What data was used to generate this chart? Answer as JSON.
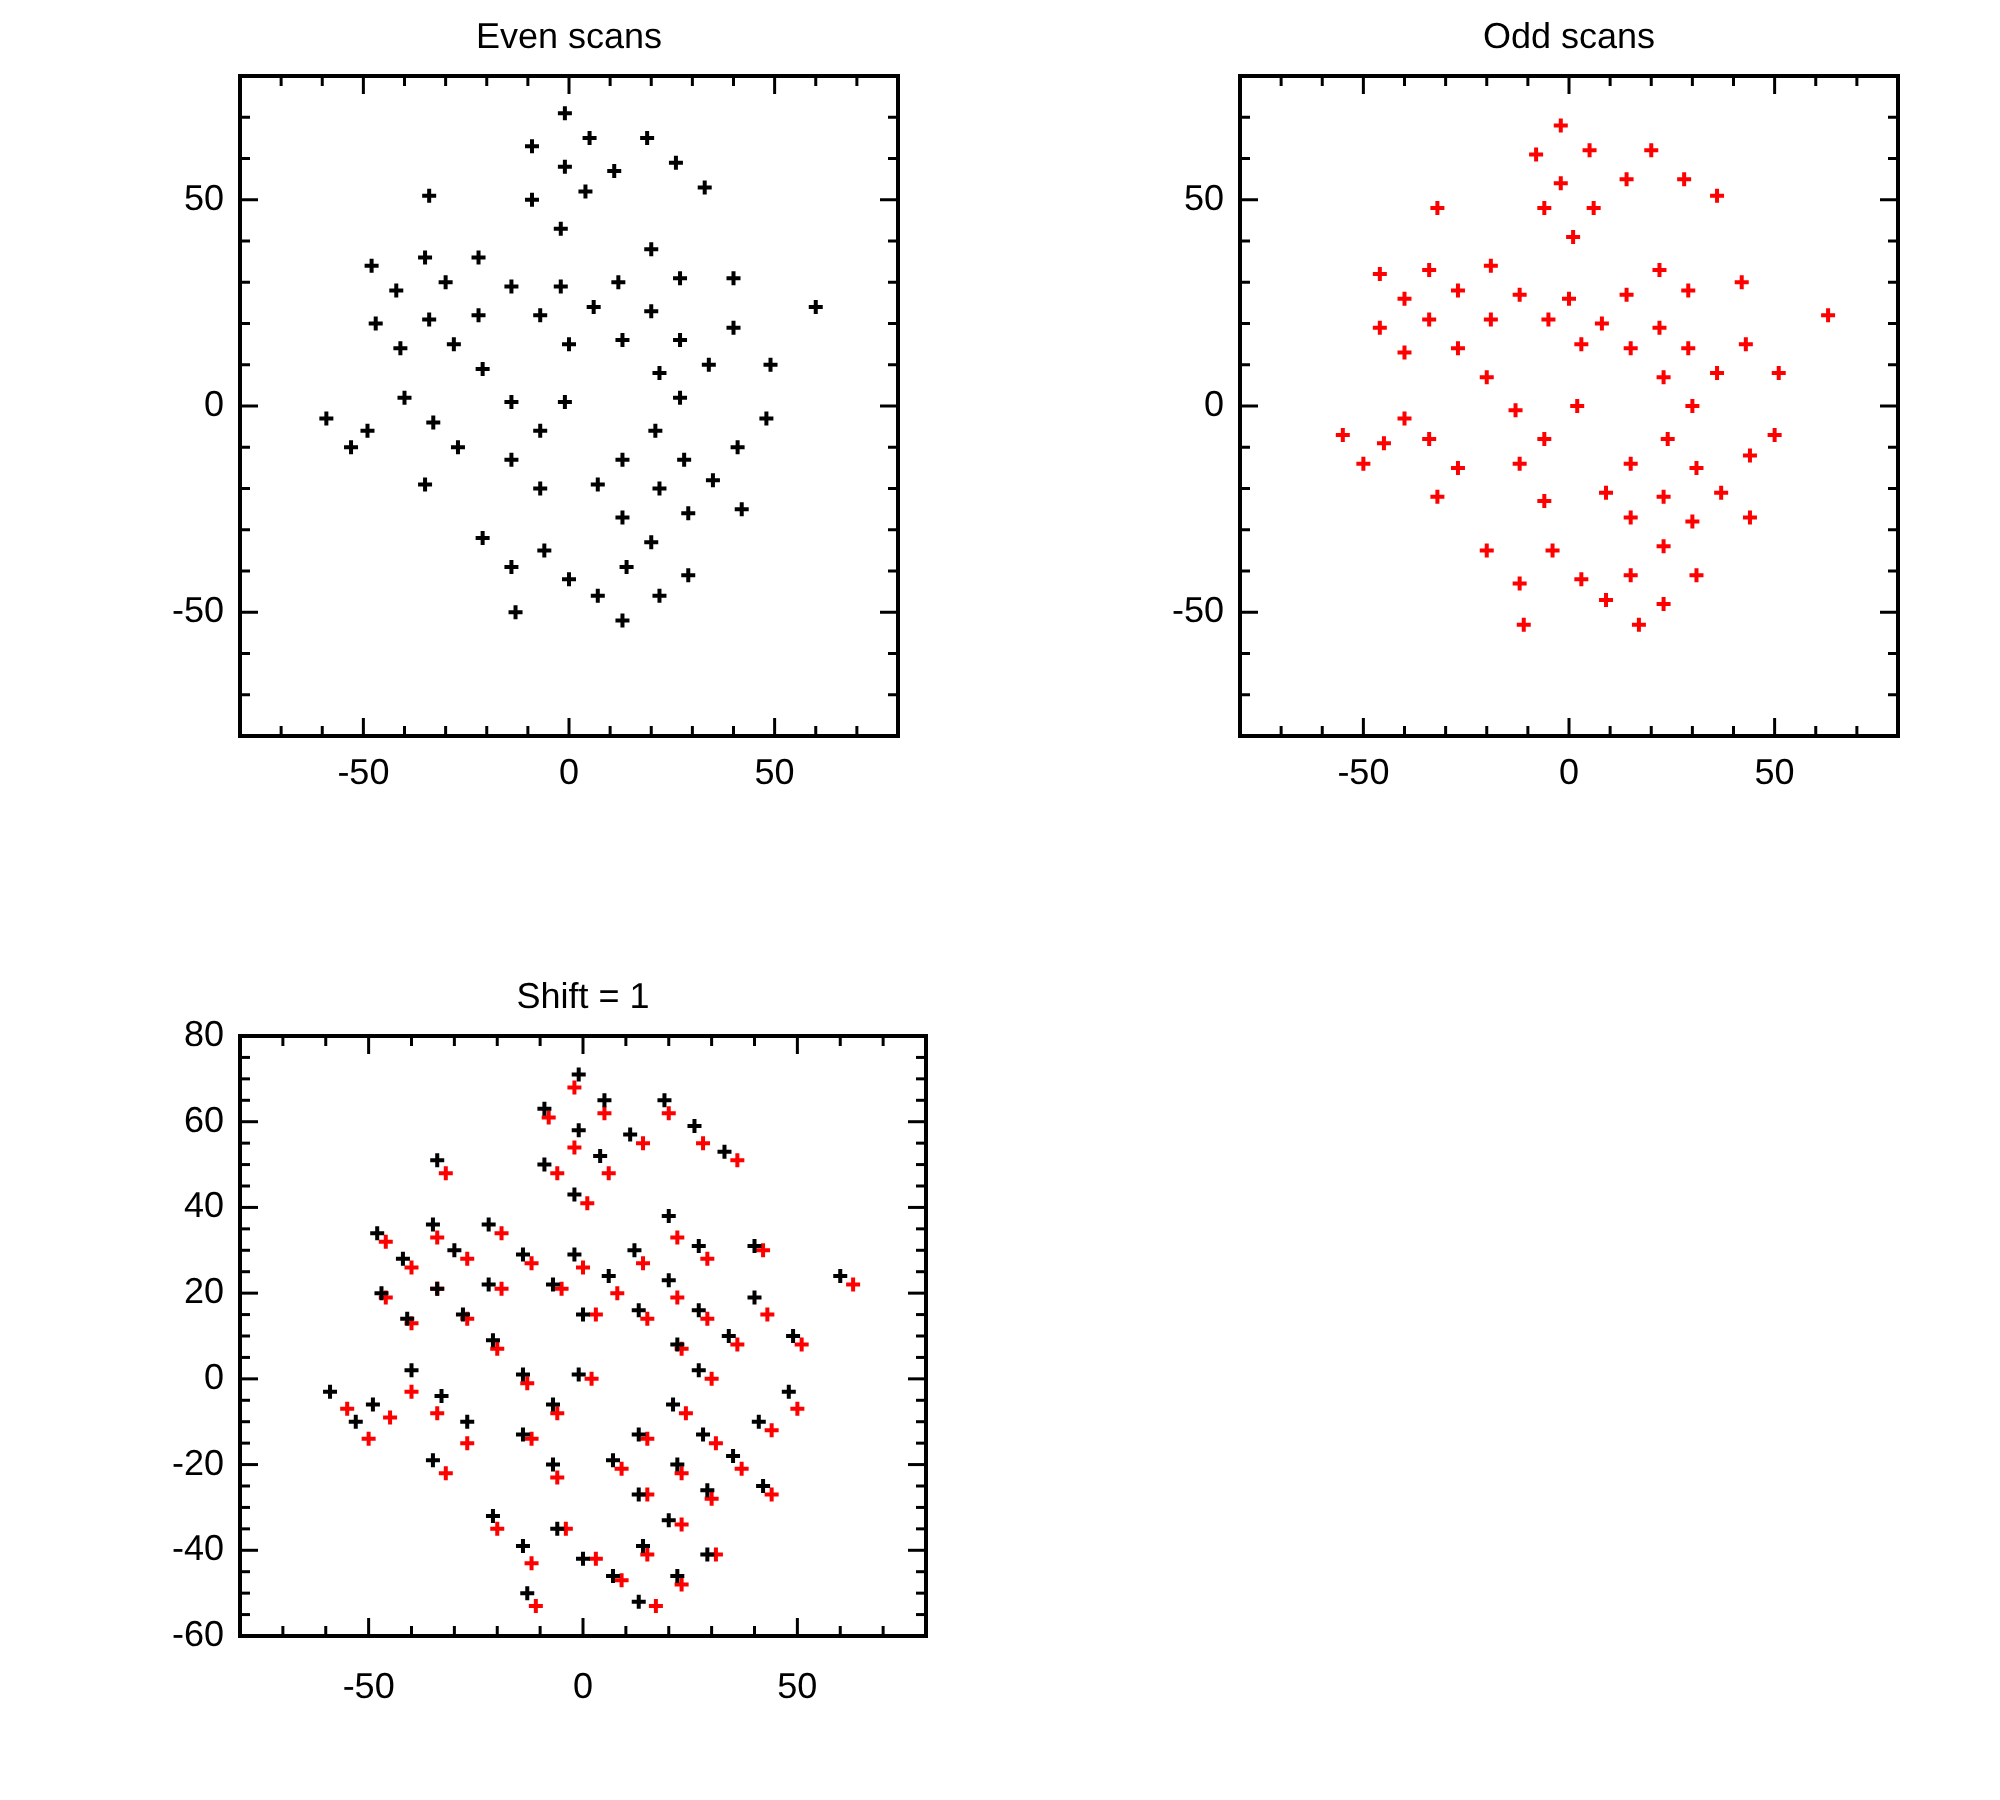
{
  "chart_data": [
    {
      "type": "scatter",
      "title": "Even scans",
      "marker": "cross",
      "xlim": [
        -80,
        80
      ],
      "ylim": [
        -80,
        80
      ],
      "xticks": [
        {
          "value": -70,
          "label": null
        },
        {
          "value": -60,
          "label": null
        },
        -50,
        {
          "value": -40,
          "label": null
        },
        {
          "value": -30,
          "label": null
        },
        {
          "value": -20,
          "label": null
        },
        {
          "value": -10,
          "label": null
        },
        0,
        {
          "value": 10,
          "label": null
        },
        {
          "value": 20,
          "label": null
        },
        {
          "value": 30,
          "label": null
        },
        {
          "value": 40,
          "label": null
        },
        50,
        {
          "value": 60,
          "label": null
        },
        {
          "value": 70,
          "label": null
        }
      ],
      "yticks": [
        {
          "value": -70,
          "label": null
        },
        {
          "value": -60,
          "label": null
        },
        -50,
        {
          "value": -40,
          "label": null
        },
        {
          "value": -30,
          "label": null
        },
        {
          "value": -20,
          "label": null
        },
        {
          "value": -10,
          "label": null
        },
        0,
        {
          "value": 10,
          "label": null
        },
        {
          "value": 20,
          "label": null
        },
        {
          "value": 30,
          "label": null
        },
        {
          "value": 40,
          "label": null
        },
        50,
        {
          "value": 60,
          "label": null
        },
        {
          "value": 70,
          "label": null
        }
      ],
      "series": [
        {
          "color": "#000000",
          "x": [
            -1,
            -9,
            5,
            19,
            -1,
            11,
            26,
            33,
            -34,
            -9,
            4,
            -2,
            20,
            -48,
            -35,
            -22,
            -42,
            -30,
            -14,
            -2,
            12,
            27,
            40,
            60,
            -47,
            -34,
            -22,
            -7,
            6,
            20,
            40,
            -41,
            -28,
            0,
            13,
            27,
            -21,
            22,
            34,
            49,
            -40,
            -14,
            -1,
            27,
            -59,
            -49,
            -33,
            -7,
            21,
            48,
            -53,
            -27,
            -14,
            13,
            28,
            41,
            -35,
            -7,
            7,
            22,
            35,
            13,
            29,
            42,
            -21,
            -6,
            20,
            -14,
            0,
            14,
            29,
            7,
            22,
            -13,
            13
          ],
          "values": [
            71,
            63,
            65,
            65,
            58,
            57,
            59,
            53,
            51,
            50,
            52,
            43,
            38,
            34,
            36,
            36,
            28,
            30,
            29,
            29,
            30,
            31,
            31,
            24,
            20,
            21,
            22,
            22,
            24,
            23,
            19,
            14,
            15,
            15,
            16,
            16,
            9,
            8,
            10,
            10,
            2,
            1,
            1,
            2,
            -3,
            -6,
            -4,
            -6,
            -6,
            -3,
            -10,
            -10,
            -13,
            -13,
            -13,
            -10,
            -19,
            -20,
            -19,
            -20,
            -18,
            -27,
            -26,
            -25,
            -32,
            -35,
            -33,
            -39,
            -42,
            -39,
            -41,
            -46,
            -46,
            -50,
            -52
          ]
        }
      ]
    },
    {
      "type": "scatter",
      "title": "Odd scans",
      "marker": "cross",
      "xlim": [
        -80,
        80
      ],
      "ylim": [
        -80,
        80
      ],
      "xticks": [
        {
          "value": -70,
          "label": null
        },
        {
          "value": -60,
          "label": null
        },
        -50,
        {
          "value": -40,
          "label": null
        },
        {
          "value": -30,
          "label": null
        },
        {
          "value": -20,
          "label": null
        },
        {
          "value": -10,
          "label": null
        },
        0,
        {
          "value": 10,
          "label": null
        },
        {
          "value": 20,
          "label": null
        },
        {
          "value": 30,
          "label": null
        },
        {
          "value": 40,
          "label": null
        },
        50,
        {
          "value": 60,
          "label": null
        },
        {
          "value": 70,
          "label": null
        }
      ],
      "yticks": [
        {
          "value": -70,
          "label": null
        },
        {
          "value": -60,
          "label": null
        },
        -50,
        {
          "value": -40,
          "label": null
        },
        {
          "value": -30,
          "label": null
        },
        {
          "value": -20,
          "label": null
        },
        {
          "value": -10,
          "label": null
        },
        0,
        {
          "value": 10,
          "label": null
        },
        {
          "value": 20,
          "label": null
        },
        {
          "value": 30,
          "label": null
        },
        {
          "value": 40,
          "label": null
        },
        50,
        {
          "value": 60,
          "label": null
        },
        {
          "value": 70,
          "label": null
        }
      ],
      "series": [
        {
          "color": "#ff0000",
          "x": [
            -2,
            -8,
            5,
            20,
            -2,
            14,
            28,
            36,
            -32,
            -6,
            6,
            1,
            22,
            -46,
            -34,
            -19,
            -40,
            -27,
            -12,
            0,
            14,
            29,
            42,
            63,
            -46,
            -34,
            -19,
            -5,
            8,
            22,
            43,
            -40,
            -27,
            3,
            15,
            29,
            -20,
            23,
            36,
            51,
            -40,
            -13,
            2,
            30,
            -55,
            -45,
            -34,
            -6,
            24,
            50,
            -50,
            -27,
            -12,
            15,
            31,
            44,
            -32,
            -6,
            9,
            23,
            37,
            15,
            30,
            44,
            -20,
            -4,
            23,
            -12,
            3,
            15,
            31,
            9,
            23,
            -11,
            17
          ],
          "values": [
            68,
            61,
            62,
            62,
            54,
            55,
            55,
            51,
            48,
            48,
            48,
            41,
            33,
            32,
            33,
            34,
            26,
            28,
            27,
            26,
            27,
            28,
            30,
            22,
            19,
            21,
            21,
            21,
            20,
            19,
            15,
            13,
            14,
            15,
            14,
            14,
            7,
            7,
            8,
            8,
            -3,
            -1,
            0,
            0,
            -7,
            -9,
            -8,
            -8,
            -8,
            -7,
            -14,
            -15,
            -14,
            -14,
            -15,
            -12,
            -22,
            -23,
            -21,
            -22,
            -21,
            -27,
            -28,
            -27,
            -35,
            -35,
            -34,
            -43,
            -42,
            -41,
            -41,
            -47,
            -48,
            -53,
            -53
          ]
        }
      ]
    },
    {
      "type": "scatter",
      "title": "Shift = 1",
      "marker": "cross",
      "xlim": [
        -80,
        80
      ],
      "ylim": [
        -60,
        80
      ],
      "xticks": [
        {
          "value": -70,
          "label": null
        },
        {
          "value": -60,
          "label": null
        },
        -50,
        {
          "value": -40,
          "label": null
        },
        {
          "value": -30,
          "label": null
        },
        {
          "value": -20,
          "label": null
        },
        {
          "value": -10,
          "label": null
        },
        0,
        {
          "value": 10,
          "label": null
        },
        {
          "value": 20,
          "label": null
        },
        {
          "value": 30,
          "label": null
        },
        {
          "value": 40,
          "label": null
        },
        50,
        {
          "value": 60,
          "label": null
        },
        {
          "value": 70,
          "label": null
        }
      ],
      "yticks": [
        -60,
        {
          "value": -55,
          "label": null
        },
        {
          "value": -50,
          "label": null
        },
        {
          "value": -45,
          "label": null
        },
        -40,
        {
          "value": -35,
          "label": null
        },
        {
          "value": -30,
          "label": null
        },
        {
          "value": -25,
          "label": null
        },
        -20,
        {
          "value": -15,
          "label": null
        },
        {
          "value": -10,
          "label": null
        },
        {
          "value": -5,
          "label": null
        },
        0,
        {
          "value": 5,
          "label": null
        },
        {
          "value": 10,
          "label": null
        },
        {
          "value": 15,
          "label": null
        },
        20,
        {
          "value": 25,
          "label": null
        },
        {
          "value": 30,
          "label": null
        },
        {
          "value": 35,
          "label": null
        },
        40,
        {
          "value": 45,
          "label": null
        },
        {
          "value": 50,
          "label": null
        },
        {
          "value": 55,
          "label": null
        },
        60,
        {
          "value": 65,
          "label": null
        },
        {
          "value": 70,
          "label": null
        },
        {
          "value": 75,
          "label": null
        },
        80
      ],
      "series": [
        {
          "color": "#000000",
          "x": [
            -1,
            -9,
            5,
            19,
            -1,
            11,
            26,
            33,
            -34,
            -9,
            4,
            -2,
            20,
            -48,
            -35,
            -22,
            -42,
            -30,
            -14,
            -2,
            12,
            27,
            40,
            60,
            -47,
            -34,
            -22,
            -7,
            6,
            20,
            40,
            -41,
            -28,
            0,
            13,
            27,
            -21,
            22,
            34,
            49,
            -40,
            -14,
            -1,
            27,
            -59,
            -49,
            -33,
            -7,
            21,
            48,
            -53,
            -27,
            -14,
            13,
            28,
            41,
            -35,
            -7,
            7,
            22,
            35,
            13,
            29,
            42,
            -21,
            -6,
            20,
            -14,
            0,
            14,
            29,
            7,
            22,
            -13,
            13
          ],
          "values": [
            71,
            63,
            65,
            65,
            58,
            57,
            59,
            53,
            51,
            50,
            52,
            43,
            38,
            34,
            36,
            36,
            28,
            30,
            29,
            29,
            30,
            31,
            31,
            24,
            20,
            21,
            22,
            22,
            24,
            23,
            19,
            14,
            15,
            15,
            16,
            16,
            9,
            8,
            10,
            10,
            2,
            1,
            1,
            2,
            -3,
            -6,
            -4,
            -6,
            -6,
            -3,
            -10,
            -10,
            -13,
            -13,
            -13,
            -10,
            -19,
            -20,
            -19,
            -20,
            -18,
            -27,
            -26,
            -25,
            -32,
            -35,
            -33,
            -39,
            -42,
            -39,
            -41,
            -46,
            -46,
            -50,
            -52
          ]
        },
        {
          "color": "#ff0000",
          "x": [
            -2,
            -8,
            5,
            20,
            -2,
            14,
            28,
            36,
            -32,
            -6,
            6,
            1,
            22,
            -46,
            -34,
            -19,
            -40,
            -27,
            -12,
            0,
            14,
            29,
            42,
            63,
            -46,
            -34,
            -19,
            -5,
            8,
            22,
            43,
            -40,
            -27,
            3,
            15,
            29,
            -20,
            23,
            36,
            51,
            -40,
            -13,
            2,
            30,
            -55,
            -45,
            -34,
            -6,
            24,
            50,
            -50,
            -27,
            -12,
            15,
            31,
            44,
            -32,
            -6,
            9,
            23,
            37,
            15,
            30,
            44,
            -20,
            -4,
            23,
            -12,
            3,
            15,
            31,
            9,
            23,
            -11,
            17
          ],
          "values": [
            68,
            61,
            62,
            62,
            54,
            55,
            55,
            51,
            48,
            48,
            48,
            41,
            33,
            32,
            33,
            34,
            26,
            28,
            27,
            26,
            27,
            28,
            30,
            22,
            19,
            21,
            21,
            21,
            20,
            19,
            15,
            13,
            14,
            15,
            14,
            14,
            7,
            7,
            8,
            8,
            -3,
            -1,
            0,
            0,
            -7,
            -9,
            -8,
            -8,
            -8,
            -7,
            -14,
            -15,
            -14,
            -14,
            -15,
            -12,
            -22,
            -23,
            -21,
            -22,
            -21,
            -27,
            -28,
            -27,
            -35,
            -35,
            -34,
            -43,
            -42,
            -41,
            -41,
            -47,
            -48,
            -53,
            -53
          ]
        }
      ]
    }
  ]
}
